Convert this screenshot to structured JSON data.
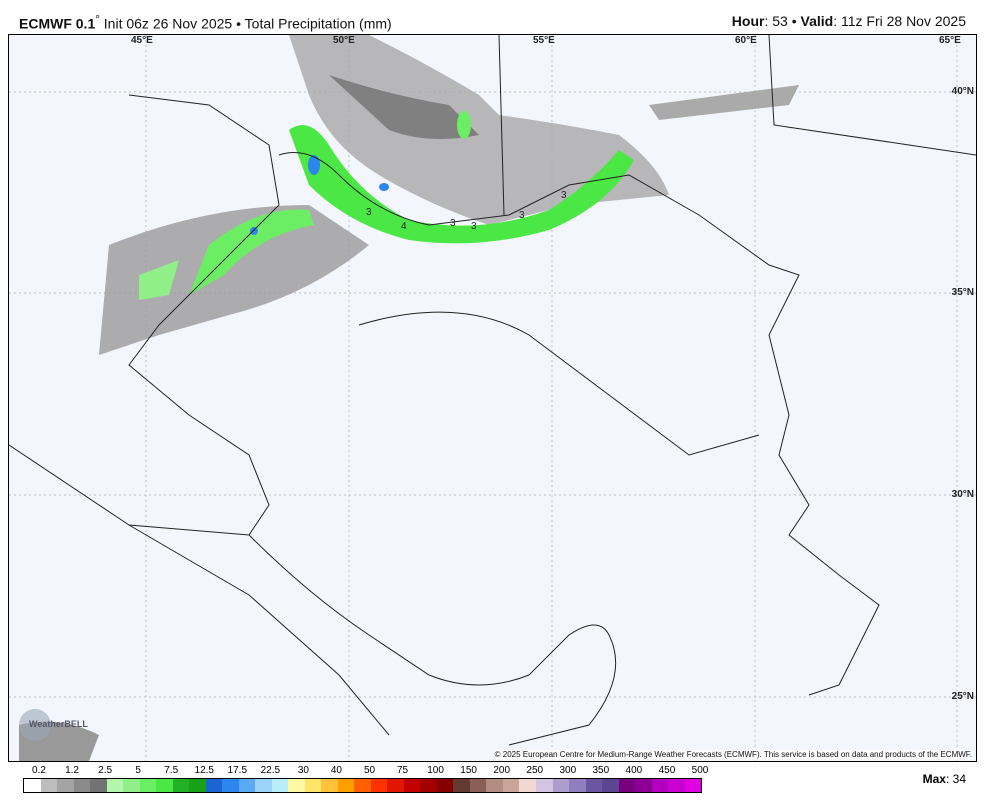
{
  "header": {
    "model": "ECMWF 0.1",
    "degree": "°",
    "init": "Init 06z 26 Nov 2025",
    "sep": "•",
    "product": "Total Precipitation (mm)",
    "hour_label": "Hour",
    "hour": "53",
    "valid_label": "Valid",
    "valid": "11z Fri 28 Nov 2025"
  },
  "map": {
    "lon_labels": [
      "45°E",
      "50°E",
      "55°E",
      "60°E",
      "65°E"
    ],
    "lat_labels": [
      "40°N",
      "35°N",
      "30°N",
      "25°N"
    ],
    "contour_labels": [
      "3",
      "4",
      "3",
      "3",
      "3",
      "3"
    ],
    "logo": "WeatherBELL",
    "copyright": "© 2025 European Centre for Medium-Range Weather Forecasts (ECMWF). This service is based on data and products of the ECMWF."
  },
  "legend": {
    "labels": [
      "0.2",
      "1.2",
      "2.5",
      "5",
      "7.5",
      "12.5",
      "17.5",
      "22.5",
      "30",
      "40",
      "50",
      "75",
      "100",
      "150",
      "200",
      "250",
      "300",
      "350",
      "400",
      "450",
      "500"
    ],
    "colors": [
      "#ffffff",
      "#bdbdbd",
      "#a4a4a4",
      "#8a8a8a",
      "#737373",
      "#b3f5ab",
      "#90f087",
      "#6cee64",
      "#4be845",
      "#22b226",
      "#17a116",
      "#1a64d4",
      "#2c86ee",
      "#5aabf4",
      "#9dd2f8",
      "#b9eef8",
      "#fff8a2",
      "#ffe46c",
      "#ffc23a",
      "#ffa000",
      "#ff6100",
      "#ff3300",
      "#e21500",
      "#c20000",
      "#a30000",
      "#860000",
      "#633a31",
      "#8b5f55",
      "#b28c80",
      "#c9a598",
      "#f1d9d1",
      "#d2c5e2",
      "#ad9dcc",
      "#907ebe",
      "#6c56a1",
      "#5c4592",
      "#78007e",
      "#8d0094",
      "#b300c0",
      "#c900d2",
      "#e100e1"
    ],
    "max_label": "Max",
    "max": "34"
  }
}
